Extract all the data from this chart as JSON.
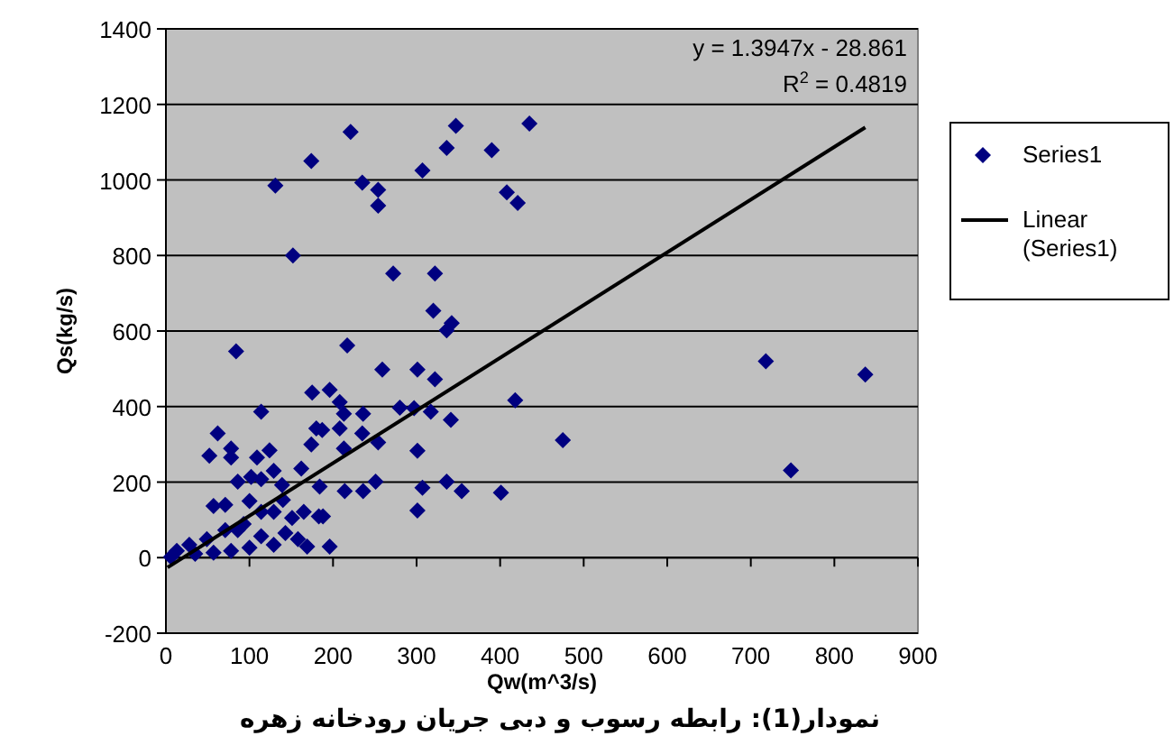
{
  "chart_data": {
    "type": "scatter",
    "xlabel": "Qw(m^3/s)",
    "ylabel": "Qs(kg/s)",
    "xlim": [
      0,
      900
    ],
    "xticks": [
      0,
      100,
      200,
      300,
      400,
      500,
      600,
      700,
      800,
      900
    ],
    "ylim": [
      -200,
      1400
    ],
    "yticks": [
      -200,
      0,
      200,
      400,
      600,
      800,
      1000,
      1200,
      1400
    ],
    "grid": "y",
    "legend": "right",
    "annotations": [
      "y = 1.3947x - 28.861",
      "R$^{2}$ = 0.4819",
      "نمودار(1): رابطه رسوب و دبی جریان رودخانه زهره"
    ],
    "series": [
      {
        "name": "Series1",
        "color": "#000080",
        "marker": "diamond",
        "x": [
          221,
          347,
          435,
          336,
          390,
          174,
          307,
          131,
          235,
          254,
          254,
          408,
          421,
          152,
          272,
          322,
          320,
          336,
          342,
          84,
          217,
          259,
          301,
          322,
          175,
          196,
          208,
          213,
          236,
          114,
          280,
          297,
          317,
          418,
          341,
          208,
          235,
          254,
          180,
          187,
          174,
          213,
          62,
          52,
          78,
          78,
          124,
          109,
          301,
          162,
          129,
          86,
          102,
          114,
          139,
          184,
          251,
          307,
          336,
          354,
          401,
          214,
          236,
          301,
          188,
          169,
          196,
          475,
          718,
          748,
          837,
          57,
          71,
          100,
          129,
          151,
          93,
          71,
          49,
          28,
          13,
          6,
          114,
          143,
          158,
          129,
          100,
          78,
          57,
          35,
          165,
          183,
          140,
          114,
          86
        ],
        "values": [
          1127,
          1143,
          1149,
          1085,
          1079,
          1050,
          1025,
          985,
          993,
          974,
          932,
          967,
          939,
          800,
          752,
          752,
          654,
          602,
          621,
          546,
          562,
          498,
          498,
          472,
          437,
          444,
          412,
          381,
          381,
          386,
          397,
          396,
          386,
          417,
          365,
          342,
          329,
          305,
          342,
          338,
          300,
          289,
          329,
          270,
          289,
          265,
          284,
          265,
          283,
          236,
          230,
          201,
          214,
          208,
          192,
          188,
          201,
          185,
          201,
          176,
          172,
          176,
          176,
          125,
          109,
          29,
          29,
          311,
          520,
          231,
          485,
          137,
          140,
          150,
          121,
          105,
          89,
          73,
          49,
          34,
          18,
          2,
          57,
          65,
          49,
          34,
          26,
          18,
          13,
          10,
          121,
          109,
          153,
          121,
          73
        ]
      },
      {
        "name": "Linear (Series1)",
        "color": "#000000",
        "type": "line",
        "x": [
          2,
          837
        ],
        "values": [
          -26,
          1139
        ]
      }
    ]
  }
}
